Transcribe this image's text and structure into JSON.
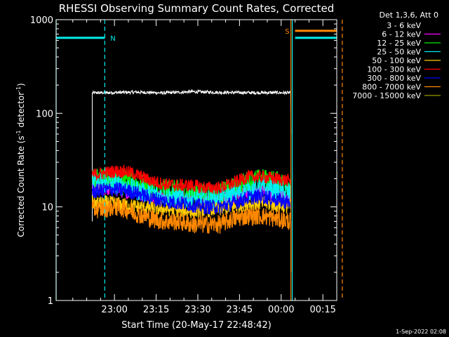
{
  "chart_data": {
    "type": "line",
    "title": "RHESSI Observing Summary Count Rates, Corrected",
    "xlabel": "Start Time (20-May-17 22:48:42)",
    "ylabel_main": "Corrected Count Rate (s",
    "ylabel_sup1": "-1",
    "ylabel_mid": " detector",
    "ylabel_sup2": "-1",
    "ylabel_end": ")",
    "yscale": "log",
    "ylim": [
      1,
      1000
    ],
    "xlim_minutes": [
      -9,
      92
    ],
    "x_ticks": [
      "23:00",
      "23:15",
      "23:30",
      "23:45",
      "00:00",
      "00:15"
    ],
    "x_tick_minutes": [
      12,
      27,
      42,
      57,
      72,
      87
    ],
    "y_ticks": [
      "1",
      "10",
      "100",
      "1000"
    ],
    "y_tick_values": [
      1,
      10,
      100,
      1000
    ],
    "grid": false,
    "legend_title": "Det 1,3,6, Att 0",
    "legend_placement": "right",
    "series": [
      {
        "name": "3 - 6 keV",
        "color": "#ffffff",
        "x": [
          4,
          10,
          20,
          30,
          40,
          50,
          60,
          70,
          75.5
        ],
        "y": [
          165,
          166,
          168,
          165,
          170,
          167,
          166,
          166,
          165
        ]
      },
      {
        "name": "6 - 12 keV",
        "color": "#ff00ff",
        "x": [
          4,
          10,
          20,
          30,
          40,
          50,
          55,
          60,
          65,
          70,
          75.5
        ],
        "y": [
          16,
          16,
          14.5,
          13,
          12.5,
          12,
          12.5,
          14,
          14.5,
          13.5,
          12.5
        ]
      },
      {
        "name": "12 - 25 keV",
        "color": "#00ee00",
        "x": [
          4,
          10,
          15,
          20,
          25,
          30,
          35,
          40,
          45,
          50,
          55,
          60,
          65,
          70,
          75.5
        ],
        "y": [
          20,
          21,
          20,
          18,
          16,
          15.5,
          15,
          14,
          14,
          14,
          16,
          19,
          20,
          19,
          17
        ]
      },
      {
        "name": "25 - 50 keV",
        "color": "#00eeee",
        "x": [
          4,
          10,
          15,
          20,
          25,
          30,
          35,
          40,
          45,
          50,
          55,
          60,
          65,
          70,
          75.5
        ],
        "y": [
          18,
          18,
          17,
          15,
          14,
          13,
          12.5,
          12,
          12,
          12.5,
          13.5,
          15,
          16,
          15,
          14
        ]
      },
      {
        "name": "50 - 100 keV",
        "color": "#ffcc00",
        "x": [
          4,
          10,
          20,
          30,
          40,
          50,
          55,
          60,
          65,
          70,
          75.5
        ],
        "y": [
          11,
          11,
          10,
          9.5,
          9,
          9.5,
          10,
          11,
          11,
          10.5,
          10
        ]
      },
      {
        "name": "100 - 300 keV",
        "color": "#ff0000",
        "x": [
          4,
          8,
          12,
          16,
          20,
          25,
          30,
          35,
          40,
          45,
          50,
          55,
          60,
          65,
          70,
          75.5
        ],
        "y": [
          22,
          23,
          24,
          24,
          22,
          19,
          17.5,
          17,
          17,
          16,
          16,
          18,
          21,
          21,
          20,
          19
        ]
      },
      {
        "name": "300 - 800 keV",
        "color": "#0000ff",
        "x": [
          4,
          8,
          12,
          16,
          20,
          25,
          30,
          35,
          40,
          45,
          50,
          55,
          60,
          65,
          70,
          75.5
        ],
        "y": [
          14.5,
          15,
          15.5,
          15,
          14,
          12.5,
          11.5,
          11,
          10.5,
          10,
          10,
          11,
          12.5,
          13,
          12,
          11
        ]
      },
      {
        "name": "800 - 7000 keV",
        "color": "#ff8800",
        "x": [
          4,
          8,
          12,
          16,
          20,
          25,
          30,
          35,
          40,
          45,
          50,
          55,
          60,
          65,
          70,
          75.5
        ],
        "y": [
          9.5,
          9.5,
          10,
          9.5,
          8.5,
          7.5,
          7,
          7,
          6.5,
          6.5,
          6.5,
          7.5,
          8,
          8,
          7.5,
          7
        ]
      },
      {
        "name": "7000 - 15000 keV",
        "color": "#999900",
        "x": [],
        "y": []
      }
    ],
    "flags": [
      {
        "label": "N",
        "color": "#00eeee",
        "x_start": -9,
        "x_end": 8.5,
        "level": 640
      },
      {
        "label": "S",
        "color": "#ff8800",
        "x_start": 77,
        "x_end": 94,
        "level": 760
      },
      {
        "label": "",
        "color": "#00eeee",
        "x_start": 77,
        "x_end": 94,
        "level": 640
      }
    ],
    "vlines": [
      {
        "x": 8.5,
        "color": "#00eeee",
        "style": "dashed"
      },
      {
        "x": 76,
        "color": "#00eeee",
        "style": "solid"
      },
      {
        "x": 75.5,
        "color": "#ff8800",
        "style": "solid"
      },
      {
        "x": 94,
        "color": "#ff8800",
        "style": "dashed"
      },
      {
        "x": -9,
        "color": "#00eeee",
        "style": "solid"
      }
    ],
    "annotation_date": "1-Sep-2022 02:08"
  }
}
